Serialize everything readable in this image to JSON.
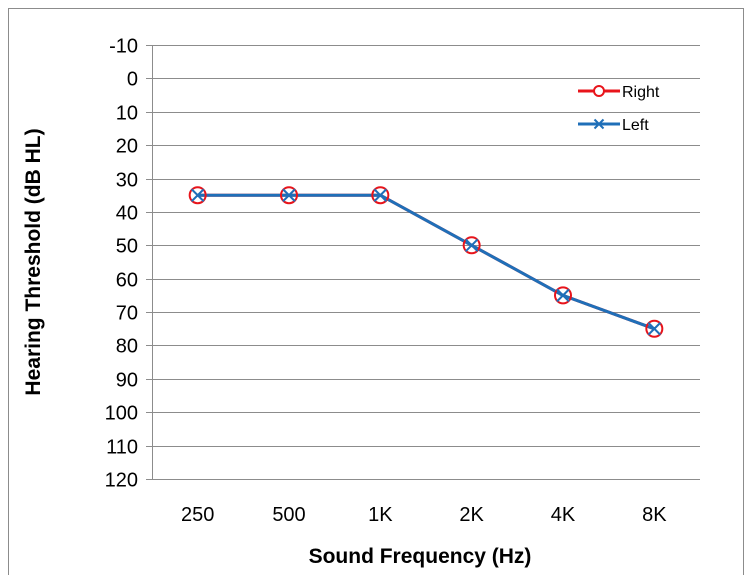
{
  "chart_data": {
    "type": "line",
    "title": "",
    "xlabel": "Sound Frequency (Hz)",
    "ylabel": "Hearing Threshold (dB HL)",
    "categories": [
      "250",
      "500",
      "1K",
      "2K",
      "4K",
      "8K"
    ],
    "y_ticks": [
      "-10",
      "0",
      "10",
      "20",
      "30",
      "40",
      "50",
      "60",
      "70",
      "80",
      "90",
      "100",
      "110",
      "120"
    ],
    "ylim": [
      -10,
      120
    ],
    "y_inverted": true,
    "grid": "horizontal",
    "legend_position": "top-right",
    "series": [
      {
        "name": "Right",
        "values": [
          35,
          35,
          35,
          50,
          65,
          75
        ],
        "color": "#e8141b",
        "marker": "circle"
      },
      {
        "name": "Left",
        "values": [
          35,
          35,
          35,
          50,
          65,
          75
        ],
        "color": "#1f6fb8",
        "marker": "x"
      }
    ],
    "colors": {
      "grid": "#8c8c8c",
      "axis": "#8c8c8c",
      "frame": "#8c8c8c"
    }
  }
}
